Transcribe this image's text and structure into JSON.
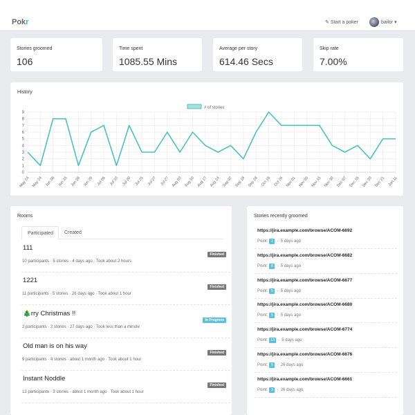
{
  "nav": {
    "brand_main": "Pok",
    "brand_accent": "r",
    "start": "Start a poker",
    "user": "bailor ▾"
  },
  "stats": [
    {
      "label": "Stories groomed",
      "value": "106"
    },
    {
      "label": "Time spent",
      "value": "1085.55 Mins"
    },
    {
      "label": "Average per story",
      "value": "614.46 Secs"
    },
    {
      "label": "Skip rate",
      "value": "7.00%"
    }
  ],
  "history": {
    "title": "History"
  },
  "chart_data": {
    "type": "line",
    "legend": "# of stories",
    "legend_position": "top",
    "grid": true,
    "color": "#4bc0c0",
    "ylim": [
      0,
      9
    ],
    "y_ticks": [
      "0",
      "1",
      "2",
      "3",
      "4",
      "5",
      "6",
      "7",
      "8",
      "9"
    ],
    "categories": [
      "May 24",
      "May 24",
      "Jun 08",
      "Jun 15",
      "Jun 28",
      "Jun 29",
      "Jul 06",
      "Jul 10",
      "Jul 20",
      "Jul 25",
      "Jul 27",
      "Jul 27",
      "Aug 03",
      "Aug 10",
      "Aug 17",
      "Aug 24",
      "Sep 07",
      "Sep 18",
      "Sep 28",
      "Oct 19",
      "Oct 26",
      "Nov 01",
      "Nov 09",
      "Nov 15",
      "Nov 30",
      "Dec 07",
      "Dec 15",
      "Dec 20",
      "Dec 21",
      "Jan 11"
    ],
    "values": [
      3,
      1,
      8,
      8,
      1,
      6,
      7,
      1,
      7,
      3,
      3,
      6,
      3,
      6,
      4,
      3,
      4,
      2,
      6,
      9,
      7,
      7,
      7,
      7,
      4,
      3,
      4,
      2,
      5,
      5
    ]
  },
  "rooms": {
    "title": "Rooms",
    "tabs": [
      "Participated",
      "Created"
    ],
    "items": [
      {
        "name": "111",
        "status": "Finished",
        "meta": "10 participants  ·  5 stories  ·  4 days ago  ·  Took about 2 hours"
      },
      {
        "name": "1221",
        "status": "Finished",
        "meta": "11 participants  ·  5 stories  ·  26 days ago  ·  Took about 1 hour"
      },
      {
        "name": "🎄rry Christmas !!",
        "status": "In Progress",
        "meta": "2 participants  ·  2 stories  ·  27 days ago  ·  Took less than a minute"
      },
      {
        "name": "Old man is on his way",
        "status": "Finished",
        "meta": "9 participants  ·  4 stories  ·  about 1 month ago  ·  Took about 1 hour"
      },
      {
        "name": "Instant Noddle",
        "status": "Finished",
        "meta": "12 participants  ·  3 stories  ·  about 1 month ago  ·  Took about 1 hour"
      }
    ]
  },
  "stories": {
    "title": "Stories recently groomed",
    "point_label": "Point:",
    "items": [
      {
        "url": "https://jira.example.com/browse/ACOM-6692",
        "point": "1",
        "ago": "5 days ago"
      },
      {
        "url": "https://jira.example.com/browse/ACOM-6682",
        "point": "8",
        "ago": "5 days ago"
      },
      {
        "url": "https://jira.example.com/browse/ACOM-6677",
        "point": "5",
        "ago": "5 days ago"
      },
      {
        "url": "https://jira.example.com/browse/ACOM-6680",
        "point": "5",
        "ago": "5 days ago"
      },
      {
        "url": "https://jira.example.com/browse/ACOM-6774",
        "point": "13",
        "ago": "5 days ago"
      },
      {
        "url": "https://jira.example.com/browse/ACOM-6676",
        "point": "5",
        "ago": "26 days ago"
      },
      {
        "url": "https://jira.example.com/browse/ACOM-6661",
        "point": "3",
        "ago": "26 days ago"
      }
    ]
  }
}
